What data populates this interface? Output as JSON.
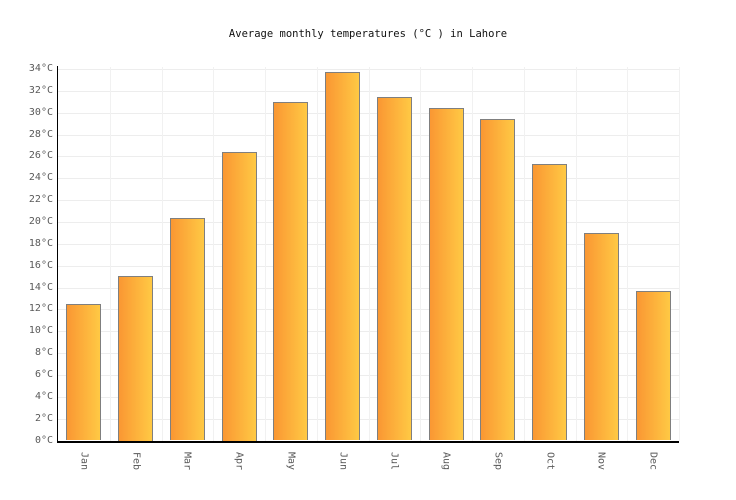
{
  "title": "Average monthly temperatures (°C ) in Lahore",
  "chart_data": {
    "type": "bar",
    "title": "Average monthly temperatures (°C ) in Lahore",
    "categories": [
      "Jan",
      "Feb",
      "Mar",
      "Apr",
      "May",
      "Jun",
      "Jul",
      "Aug",
      "Sep",
      "Oct",
      "Nov",
      "Dec"
    ],
    "values": [
      12.5,
      15.1,
      20.4,
      26.4,
      31.0,
      33.7,
      31.4,
      30.4,
      29.4,
      25.3,
      19.0,
      13.7
    ],
    "xlabel": "",
    "ylabel": "",
    "ylim": [
      0,
      34
    ],
    "ytick_step": 2,
    "ytick_suffix": "°C",
    "grid": true,
    "legend_position": "none",
    "colors": {
      "bar_gradient_start": "#FA9733",
      "bar_gradient_end": "#FFC944",
      "bar_border": "#7F7F7F",
      "gridline": "#EDEDED",
      "axis": "#000000",
      "tick_text": "#595959",
      "title_text": "#111111",
      "background": "#FFFFFF"
    }
  }
}
